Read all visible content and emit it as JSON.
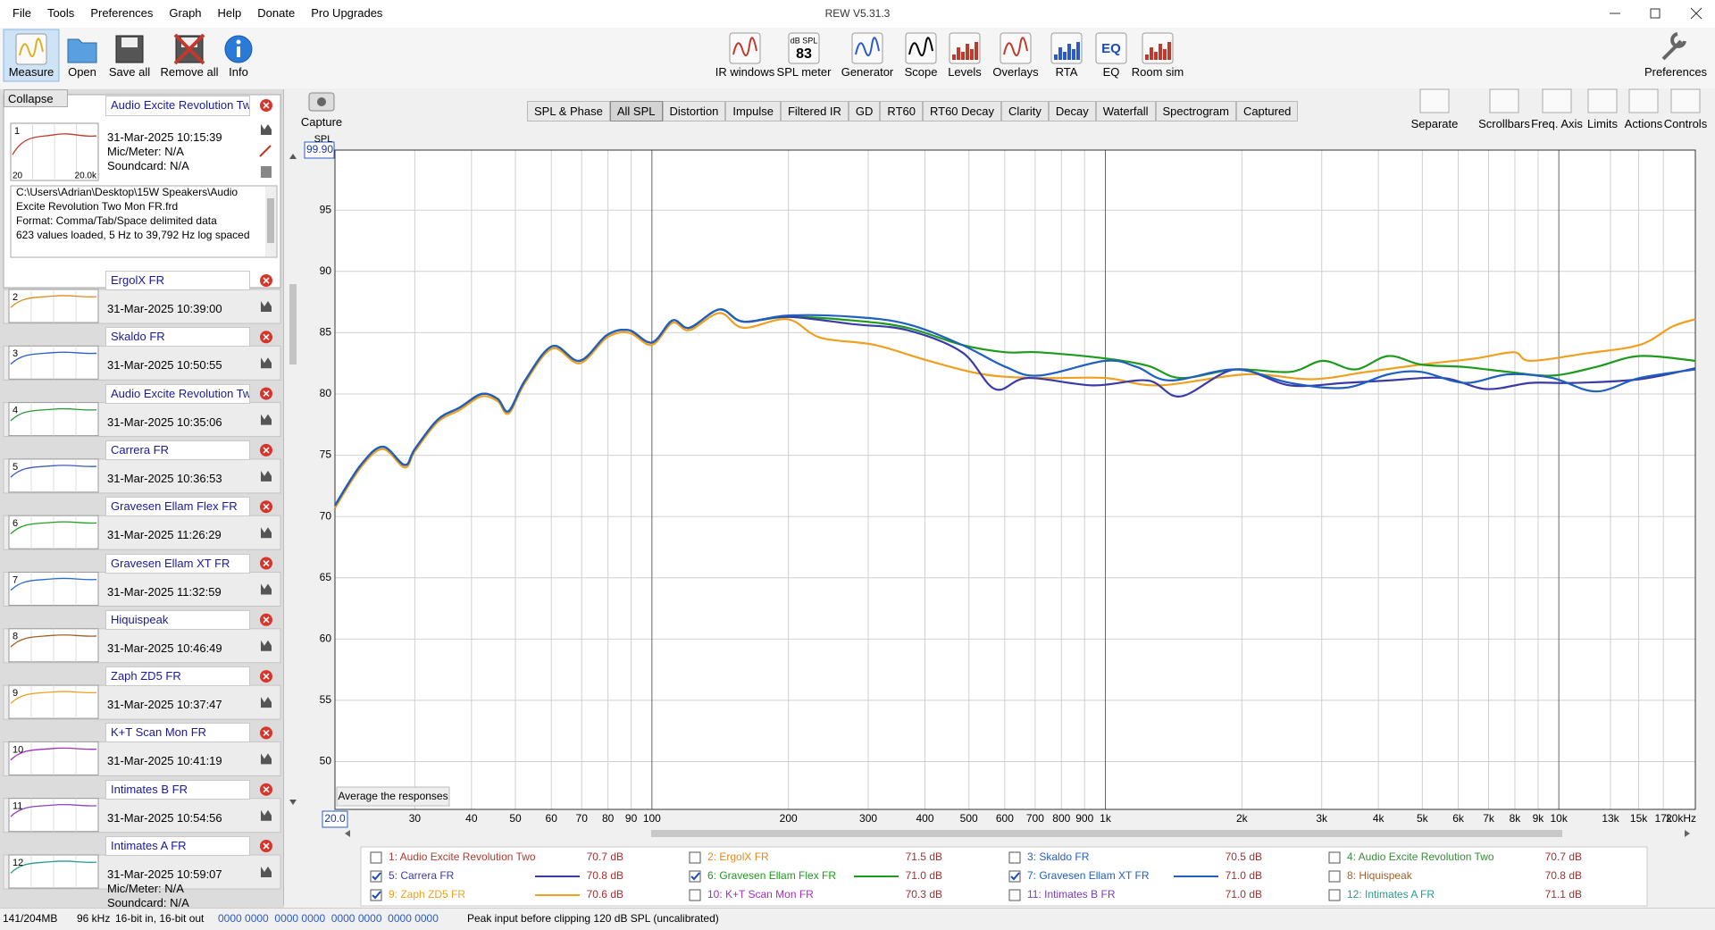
{
  "window": {
    "title": "REW V5.31.3"
  },
  "menu": [
    "File",
    "Tools",
    "Preferences",
    "Graph",
    "Help",
    "Donate",
    "Pro Upgrades"
  ],
  "toolbar": {
    "left": [
      "Measure",
      "Open",
      "Save all",
      "Remove all",
      "Info"
    ],
    "center": [
      "IR windows",
      "SPL meter",
      "Generator",
      "Scope",
      "Levels",
      "Overlays",
      "RTA",
      "EQ",
      "Room sim"
    ],
    "right": [
      "Preferences"
    ],
    "spl_meter_icon": [
      "dB SPL",
      "83"
    ],
    "eq_icon": "EQ"
  },
  "panel": {
    "collapse": "Collapse",
    "selected": {
      "number": "1",
      "name": "Audio Excite Revolution Two",
      "date": "31-Mar-2025 10:15:39",
      "mic": "Mic/Meter: N/A",
      "soundcard": "Soundcard: N/A",
      "thumb_axis": [
        "20",
        "20.0k"
      ],
      "thumb_color": "#c0392b",
      "notes": [
        "C:\\Users\\Adrian\\Desktop\\15W Speakers\\Audio",
        "Excite Revolution Two Mon FR.frd",
        "Format: Comma/Tab/Space delimited data",
        "623 values loaded, 5 Hz to 39,792 Hz log spaced"
      ]
    },
    "measurements": [
      {
        "number": "2",
        "name": "ErgolX FR",
        "date": "31-Mar-2025 10:39:00",
        "thumb_color": "#e08a1e"
      },
      {
        "number": "3",
        "name": "Skaldo FR",
        "date": "31-Mar-2025 10:50:55",
        "thumb_color": "#2a5cc8"
      },
      {
        "number": "4",
        "name": "Audio Excite Revolution Two",
        "date": "31-Mar-2025 10:35:06",
        "thumb_color": "#2a9a3a"
      },
      {
        "number": "5",
        "name": "Carrera FR",
        "date": "31-Mar-2025 10:36:53",
        "thumb_color": "#3a5bc0"
      },
      {
        "number": "6",
        "name": "Gravesen Ellam Flex FR",
        "date": "31-Mar-2025 11:26:29",
        "thumb_color": "#22a022"
      },
      {
        "number": "7",
        "name": "Gravesen Ellam XT FR",
        "date": "31-Mar-2025 11:32:59",
        "thumb_color": "#2a6cd0"
      },
      {
        "number": "8",
        "name": "Hiquispeak",
        "date": "31-Mar-2025 10:46:49",
        "thumb_color": "#a0602a"
      },
      {
        "number": "9",
        "name": "Zaph ZD5 FR",
        "date": "31-Mar-2025 10:37:47",
        "thumb_color": "#f0a020"
      },
      {
        "number": "10",
        "name": "K+T Scan Mon FR",
        "date": "31-Mar-2025 10:41:19",
        "thumb_color": "#a030c0"
      },
      {
        "number": "11",
        "name": "Intimates B FR",
        "date": "31-Mar-2025 10:54:56",
        "thumb_color": "#9040c0"
      },
      {
        "number": "12",
        "name": "Intimates A FR",
        "date": "31-Mar-2025 10:59:07",
        "mic": "Mic/Meter: N/A",
        "soundcard": "Soundcard: N/A",
        "thumb_color": "#2a9a8a"
      }
    ]
  },
  "capture": "Capture",
  "tabs": {
    "items": [
      "SPL & Phase",
      "All SPL",
      "Distortion",
      "Impulse",
      "Filtered IR",
      "GD",
      "RT60",
      "RT60 Decay",
      "Clarity",
      "Decay",
      "Waterfall",
      "Spectrogram",
      "Captured"
    ],
    "active": 1
  },
  "graph_controls": [
    "Separate",
    "Scrollbars",
    "Freq. Axis",
    "Limits",
    "Actions",
    "Controls"
  ],
  "graph": {
    "type": "line",
    "y_label": "SPL",
    "xscale": "log",
    "grid": true,
    "xlim": [
      20,
      20000
    ],
    "ylim": [
      46.1,
      99.9
    ],
    "xticks": [
      {
        "value": 20,
        "label": "20.0"
      },
      30,
      40,
      50,
      60,
      70,
      80,
      90,
      100,
      200,
      300,
      400,
      500,
      600,
      700,
      800,
      900,
      {
        "value": 1000,
        "label": "1k"
      },
      {
        "value": 2000,
        "label": "2k"
      },
      {
        "value": 3000,
        "label": "3k"
      },
      {
        "value": 4000,
        "label": "4k"
      },
      {
        "value": 5000,
        "label": "5k"
      },
      {
        "value": 6000,
        "label": "6k"
      },
      {
        "value": 7000,
        "label": "7k"
      },
      {
        "value": 8000,
        "label": "8k"
      },
      {
        "value": 9000,
        "label": "9k"
      },
      {
        "value": 10000,
        "label": "10k"
      },
      {
        "value": 13000,
        "label": "13k"
      },
      {
        "value": 15000,
        "label": "15k"
      },
      {
        "value": 17000,
        "label": "17k"
      },
      {
        "value": 20000,
        "label": "20kHz"
      }
    ],
    "yticks": [
      50,
      55,
      60,
      65,
      70,
      75,
      80,
      85,
      90,
      95,
      {
        "value": 99.9,
        "label": "99.90"
      }
    ],
    "button": "Average the responses"
  },
  "legend": [
    {
      "label": "1: Audio Excite Revolution Two",
      "level": "70.7 dB",
      "checked": false,
      "color": "#b03a2e"
    },
    {
      "label": "2: ErgolX FR",
      "level": "71.5 dB",
      "checked": false,
      "color": "#e08a1e"
    },
    {
      "label": "3: Skaldo FR",
      "level": "70.5 dB",
      "checked": false,
      "color": "#2a5cc8"
    },
    {
      "label": "4: Audio Excite Revolution Two",
      "level": "70.7 dB",
      "checked": false,
      "color": "#3a8a3a"
    },
    {
      "label": "5: Carrera FR",
      "level": "70.8 dB",
      "checked": true,
      "color": "#3b3ba8",
      "x": [
        20,
        22.8,
        25.5,
        28.5,
        30,
        33.7,
        37.7,
        42.1,
        45.7,
        48.3,
        52.5,
        60.3,
        69.3,
        79.6,
        89,
        100,
        111,
        121,
        141,
        159,
        199,
        277,
        366,
        483,
        571,
        674,
        940,
        1241,
        1466,
        1934,
        2553,
        3370,
        4207,
        5550,
        6934,
        8654,
        10802,
        15072,
        20000
      ],
      "values": [
        70.9,
        74.2,
        75.7,
        74.2,
        75.5,
        77.9,
        78.9,
        80.0,
        79.6,
        78.6,
        81.1,
        83.9,
        82.7,
        84.8,
        85.2,
        84.2,
        86.0,
        85.4,
        86.9,
        85.9,
        86.3,
        85.7,
        85.2,
        83.4,
        80.4,
        81.3,
        80.7,
        81.1,
        79.8,
        82.0,
        80.7,
        80.9,
        81.1,
        81.3,
        80.4,
        80.9,
        80.9,
        81.2,
        82.1
      ]
    },
    {
      "label": "6: Gravesen Ellam Flex FR",
      "level": "71.0 dB",
      "checked": true,
      "color": "#1e9a1e",
      "x": [
        20,
        22.8,
        25.5,
        28.5,
        30,
        33.7,
        37.7,
        42.1,
        45.7,
        48.3,
        52.5,
        60.3,
        69.3,
        79.6,
        89,
        100,
        111,
        121,
        141,
        159,
        199,
        277,
        366,
        483,
        603,
        713,
        1000,
        1241,
        1466,
        1934,
        2553,
        3016,
        3562,
        4207,
        4970,
        6200,
        7746,
        9670,
        12072,
        15072,
        20000
      ],
      "values": [
        70.9,
        74.2,
        75.7,
        74.2,
        75.5,
        77.9,
        78.9,
        80.0,
        79.6,
        78.6,
        81.1,
        83.9,
        82.7,
        84.8,
        85.2,
        84.2,
        86.0,
        85.4,
        86.9,
        85.9,
        86.3,
        86.0,
        85.4,
        84.0,
        83.4,
        83.4,
        82.9,
        82.3,
        81.3,
        82.0,
        81.8,
        82.7,
        82.0,
        83.1,
        82.4,
        82.2,
        81.8,
        81.5,
        82.2,
        83.1,
        82.7
      ]
    },
    {
      "label": "7: Gravesen Ellam XT FR",
      "level": "71.0 dB",
      "checked": true,
      "color": "#1f5fbf",
      "x": [
        20,
        22.8,
        25.5,
        28.5,
        30,
        33.7,
        37.7,
        42.1,
        45.7,
        48.3,
        52.5,
        60.3,
        69.3,
        79.6,
        89,
        100,
        111,
        121,
        141,
        159,
        199,
        277,
        366,
        483,
        603,
        713,
        1000,
        1174,
        1387,
        1934,
        2553,
        3370,
        4207,
        4970,
        6200,
        7746,
        9670,
        12072,
        15072,
        20000
      ],
      "values": [
        70.9,
        74.2,
        75.7,
        74.2,
        75.5,
        77.9,
        78.9,
        80.0,
        79.6,
        78.6,
        81.1,
        83.9,
        82.7,
        84.8,
        85.2,
        84.2,
        86.0,
        85.4,
        86.9,
        85.9,
        86.4,
        86.3,
        85.7,
        84.0,
        82.2,
        81.5,
        82.7,
        82.2,
        81.1,
        82.0,
        80.9,
        80.5,
        81.6,
        81.8,
        80.9,
        81.6,
        81.3,
        80.2,
        81.3,
        82.0
      ]
    },
    {
      "label": "8: Hiquispeak",
      "level": "70.8 dB",
      "checked": false,
      "color": "#a0602a"
    },
    {
      "label": "9: Zaph ZD5 FR",
      "level": "70.6 dB",
      "checked": true,
      "color": "#f0a020",
      "x": [
        20,
        22.8,
        25.5,
        28.5,
        30,
        33.7,
        37.7,
        42.1,
        45.7,
        48.3,
        52.5,
        60.3,
        69.3,
        79.6,
        89,
        100,
        111,
        121,
        141,
        159,
        199,
        235,
        310,
        408,
        538,
        713,
        1000,
        1312,
        2044,
        2853,
        3766,
        4970,
        6558,
        7962,
        8654,
        11422,
        15072,
        17800,
        20000
      ],
      "values": [
        70.7,
        74.0,
        75.5,
        74.0,
        75.3,
        77.7,
        78.7,
        79.8,
        79.4,
        78.4,
        80.9,
        83.7,
        82.5,
        84.6,
        85.0,
        84.0,
        85.8,
        85.2,
        86.6,
        85.4,
        86.1,
        84.6,
        84.0,
        82.7,
        81.6,
        81.3,
        81.3,
        80.7,
        81.6,
        81.2,
        81.8,
        82.4,
        82.9,
        83.4,
        82.7,
        83.3,
        84.0,
        85.5,
        86.1
      ]
    },
    {
      "label": "10: K+T Scan Mon FR",
      "level": "70.3 dB",
      "checked": false,
      "color": "#a030c0"
    },
    {
      "label": "11: Intimates B FR",
      "level": "71.0 dB",
      "checked": false,
      "color": "#7a3ac0"
    },
    {
      "label": "12: Intimates A FR",
      "level": "71.1 dB",
      "checked": false,
      "color": "#2a9a8a"
    }
  ],
  "status": [
    "141/204MB",
    "96 kHz",
    "16-bit in, 16-bit out",
    "0000 0000  0000 0000  0000 0000  0000 0000",
    "Peak input before clipping 120 dB SPL (uncalibrated)"
  ]
}
